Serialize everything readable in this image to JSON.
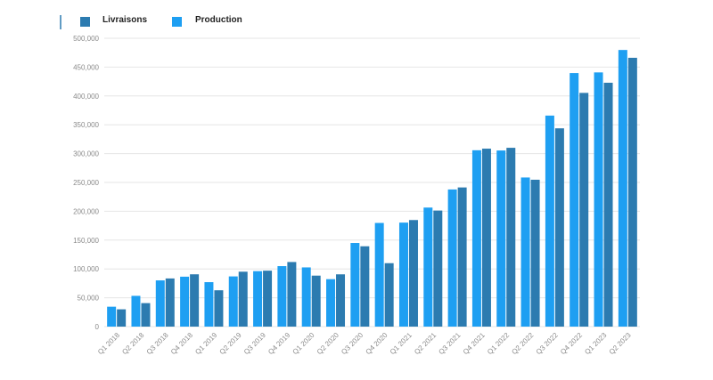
{
  "chart_data": {
    "type": "bar",
    "categories": [
      "Q1 2018",
      "Q2 2018",
      "Q3 2018",
      "Q4 2018",
      "Q1 2019",
      "Q2 2019",
      "Q3 2019",
      "Q4 2019",
      "Q1 2020",
      "Q2 2020",
      "Q3 2020",
      "Q4 2020",
      "Q1 2021",
      "Q2 2021",
      "Q3 2021",
      "Q4 2021",
      "Q1 2022",
      "Q2 2022",
      "Q3 2022",
      "Q4 2022",
      "Q1 2023",
      "Q2 2023"
    ],
    "series": [
      {
        "name": "Production",
        "color": "#1e9ff2",
        "values": [
          34494,
          53339,
          80142,
          86555,
          77100,
          87048,
          96155,
          104891,
          102672,
          82272,
          145036,
          179757,
          180338,
          206421,
          237823,
          305840,
          305407,
          258580,
          365923,
          439701,
          440808,
          479700
        ]
      },
      {
        "name": "Livraisons",
        "color": "#2c7bb0",
        "values": [
          29980,
          40740,
          83500,
          90700,
          63000,
          95200,
          97000,
          112000,
          88400,
          90650,
          139300,
          110000,
          184800,
          201250,
          241300,
          308600,
          310048,
          254695,
          343830,
          405278,
          422875,
          466140
        ]
      }
    ],
    "legend_order": [
      "Livraisons",
      "Production"
    ],
    "legend_position": "top-left",
    "ylim": [
      0,
      500000
    ],
    "y_ticks": [
      "0",
      "50,000",
      "100,000",
      "150,000",
      "200,000",
      "250,000",
      "300,000",
      "350,000",
      "400,000",
      "450,000",
      "500,000"
    ],
    "grid": true
  }
}
